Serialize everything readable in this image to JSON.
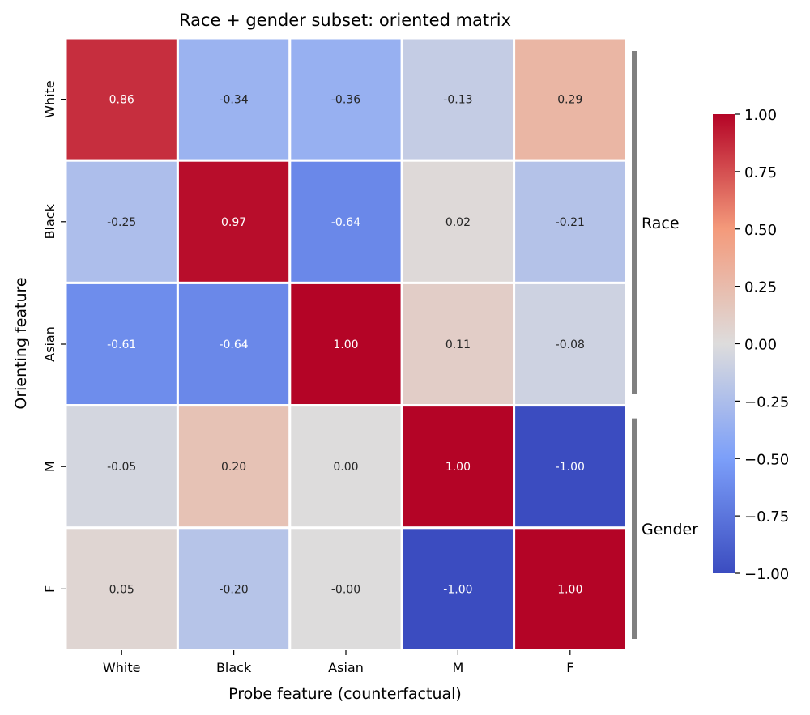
{
  "chart_data": {
    "type": "heatmap",
    "title": "Race + gender subset: oriented matrix",
    "xlabel": "Probe feature (counterfactual)",
    "ylabel": "Orienting feature",
    "x_categories": [
      "White",
      "Black",
      "Asian",
      "M",
      "F"
    ],
    "y_categories": [
      "White",
      "Black",
      "Asian",
      "M",
      "F"
    ],
    "values": [
      [
        0.86,
        -0.34,
        -0.36,
        -0.13,
        0.29
      ],
      [
        -0.25,
        0.97,
        -0.64,
        0.02,
        -0.21
      ],
      [
        -0.61,
        -0.64,
        1.0,
        0.11,
        -0.08
      ],
      [
        -0.05,
        0.2,
        0.0,
        1.0,
        -1.0
      ],
      [
        0.05,
        -0.2,
        -0.0,
        -1.0,
        1.0
      ]
    ],
    "cell_labels": [
      [
        "0.86",
        "-0.34",
        "-0.36",
        "-0.13",
        "0.29"
      ],
      [
        "-0.25",
        "0.97",
        "-0.64",
        "0.02",
        "-0.21"
      ],
      [
        "-0.61",
        "-0.64",
        "1.00",
        "0.11",
        "-0.08"
      ],
      [
        "-0.05",
        "0.20",
        "0.00",
        "1.00",
        "-1.00"
      ],
      [
        "0.05",
        "-0.20",
        "-0.00",
        "-1.00",
        "1.00"
      ]
    ],
    "vmin": -1.0,
    "vmax": 1.0,
    "colormap": "coolwarm",
    "colorbar_ticks": [
      "1.00",
      "0.75",
      "0.50",
      "0.25",
      "0.00",
      "−0.25",
      "−0.50",
      "−0.75",
      "−1.00"
    ],
    "colorbar_tick_values": [
      1.0,
      0.75,
      0.5,
      0.25,
      0.0,
      -0.25,
      -0.5,
      -0.75,
      -1.0
    ],
    "groups": [
      {
        "label": "Race",
        "rows": [
          0,
          2
        ]
      },
      {
        "label": "Gender",
        "rows": [
          3,
          4
        ]
      }
    ],
    "colors": {
      "bracket": "#808080",
      "cell_border": "#ffffff",
      "dark_text": "#262626",
      "light_text": "#ffffff"
    }
  }
}
